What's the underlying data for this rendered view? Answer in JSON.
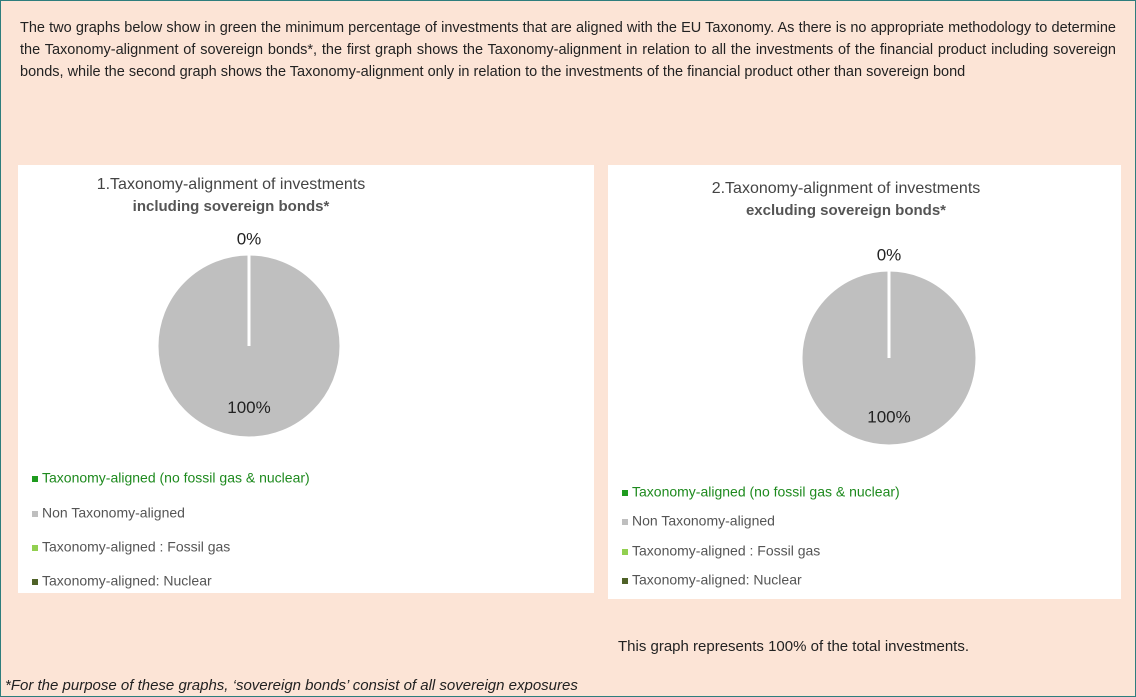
{
  "intro": "The two graphs below show in green the minimum percentage of investments that are aligned with the EU Taxonomy. As there is no appropriate methodology to determine the Taxonomy-alignment of sovereign bonds*, the first graph shows the Taxonomy-alignment in relation to all the investments of the financial product including sovereign bonds, while the second graph shows the Taxonomy-alignment only in relation to the investments of the financial product other than sovereign bond",
  "chart_data": [
    {
      "type": "pie",
      "title": "1.Taxonomy-alignment of investments",
      "subtitle": "including sovereign bonds*",
      "categories": [
        "Taxonomy-aligned (no fossil gas & nuclear)",
        "Non Taxonomy-aligned",
        "Taxonomy-aligned : Fossil gas",
        "Taxonomy-aligned: Nuclear"
      ],
      "values": [
        0,
        100,
        0,
        0
      ],
      "value_labels": [
        "0%",
        "100%",
        null,
        null
      ],
      "colors": [
        "#1e9b1e",
        "#bfbfbf",
        "#92d050",
        "#4f6228"
      ]
    },
    {
      "type": "pie",
      "title": "2.Taxonomy-alignment of investments",
      "subtitle": "excluding sovereign bonds*",
      "categories": [
        "Taxonomy-aligned (no fossil gas & nuclear)",
        "Non Taxonomy-aligned",
        "Taxonomy-aligned : Fossil gas",
        "Taxonomy-aligned: Nuclear"
      ],
      "values": [
        0,
        100,
        0,
        0
      ],
      "value_labels": [
        "0%",
        "100%",
        null,
        null
      ],
      "colors": [
        "#1e9b1e",
        "#bfbfbf",
        "#92d050",
        "#4f6228"
      ]
    }
  ],
  "note": "This graph represents 100% of the total investments.",
  "footnote": "*For the purpose of these graphs, ‘sovereign bonds’ consist of  all sovereign exposures"
}
